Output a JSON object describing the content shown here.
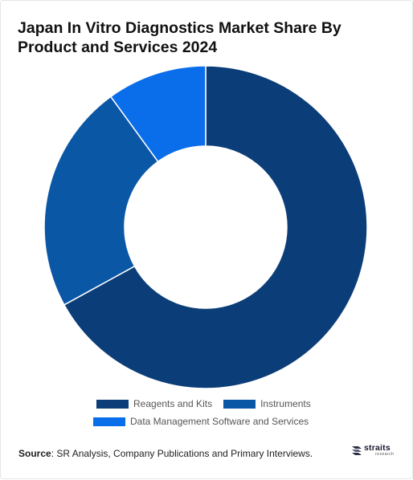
{
  "chart_data": {
    "type": "pie",
    "variant": "donut",
    "title": "Japan In Vitro Diagnostics Market Share By Product and Services 2024",
    "categories": [
      "Reagents and Kits",
      "Instruments",
      "Data Management Software and Services"
    ],
    "values": [
      67,
      23,
      10
    ],
    "colors": [
      "#0b3d78",
      "#0a57a6",
      "#0a6eea"
    ],
    "start_angle_deg": 0,
    "legend_position": "bottom"
  },
  "source": {
    "label": "Source",
    "text": ": SR Analysis, Company Publications and Primary Interviews."
  },
  "logo": {
    "name": "straits",
    "sub": "research",
    "icon": "straits-logo-icon"
  }
}
